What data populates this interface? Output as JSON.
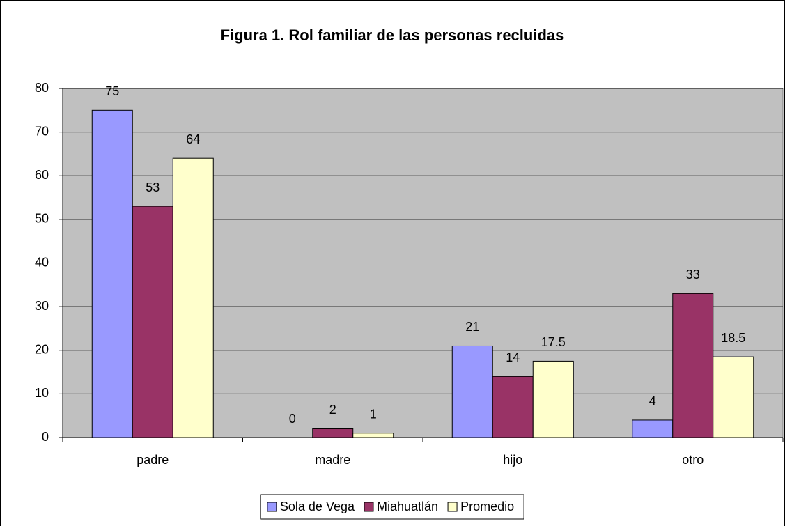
{
  "chart_data": {
    "type": "bar",
    "title": "Figura 1. Rol familiar de las personas recluidas",
    "categories": [
      "padre",
      "madre",
      "hijo",
      "otro"
    ],
    "series": [
      {
        "name": "Sola de Vega",
        "color": "#9999ff",
        "values": [
          75,
          0,
          21,
          4
        ]
      },
      {
        "name": "Miahuatlán",
        "color": "#993366",
        "values": [
          53,
          2,
          14,
          33
        ]
      },
      {
        "name": "Promedio",
        "color": "#ffffcc",
        "values": [
          64,
          1,
          17.5,
          18.5
        ]
      }
    ],
    "ylim": [
      0,
      80
    ],
    "yticks": [
      0,
      10,
      20,
      30,
      40,
      50,
      60,
      70,
      80
    ],
    "grid": true,
    "legend": "bottom"
  }
}
